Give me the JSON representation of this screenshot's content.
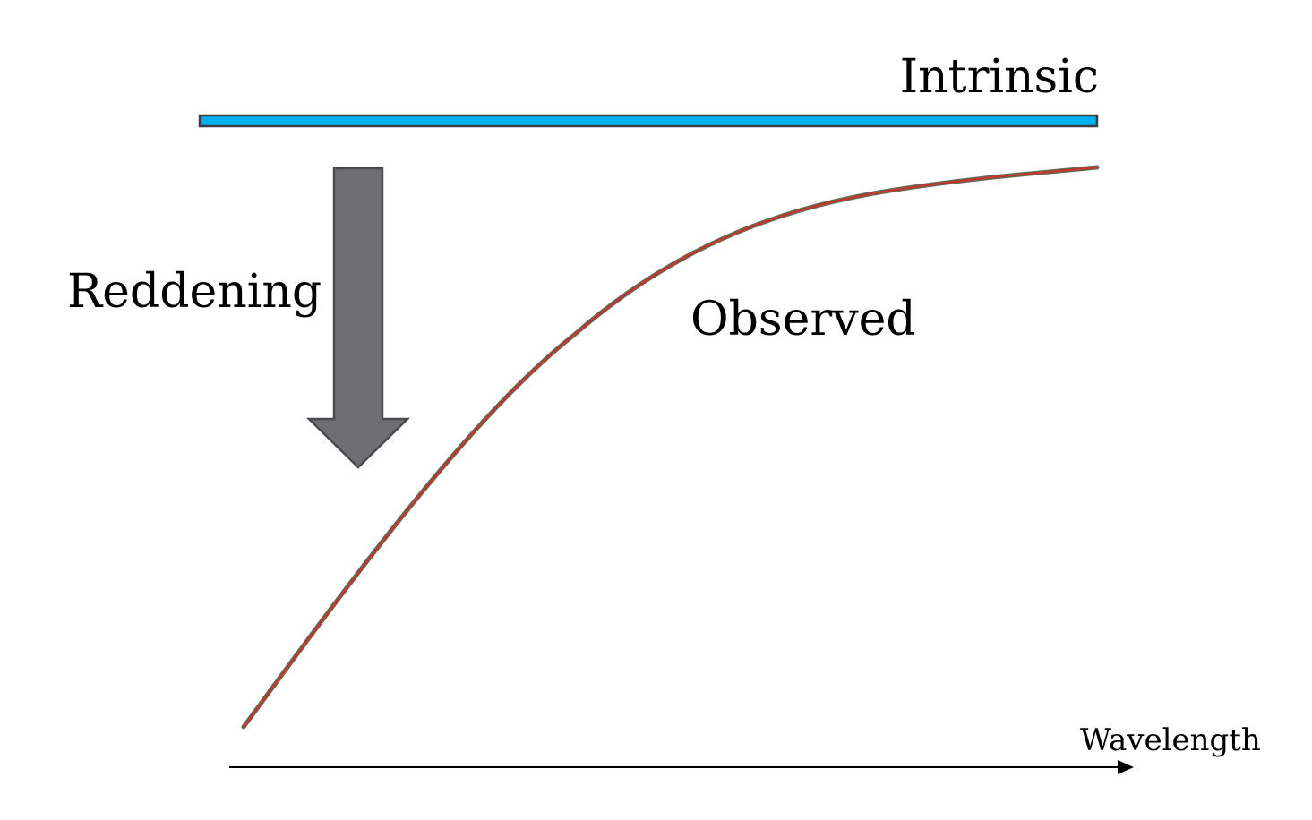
{
  "labels": {
    "intrinsic": "Intrinsic",
    "reddening": "Reddening",
    "observed": "Observed",
    "wavelength": "Wavelength"
  },
  "colors": {
    "intrinsic_line": "#00b0f0",
    "intrinsic_outline": "#3a3f44",
    "observed_curve": "#c0392b",
    "observed_outline": "#5f6b5a",
    "arrow_fill": "#6e6e73",
    "arrow_outline": "#4a4a4f",
    "axis": "#000000"
  },
  "icons": {
    "reddening_arrow": "arrow-down-icon",
    "axis_arrowhead": "arrow-right-icon"
  }
}
